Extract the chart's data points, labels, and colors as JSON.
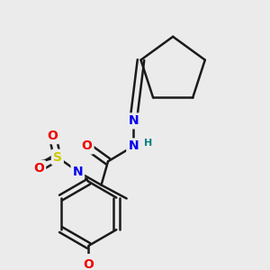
{
  "background_color": "#ebebeb",
  "bond_color": "#1a1a1a",
  "bond_width": 1.8,
  "atom_colors": {
    "N": "#0000ee",
    "O": "#ee0000",
    "S": "#cccc00",
    "H": "#008080"
  },
  "font_size_atom": 10,
  "font_size_H": 8,
  "figsize": [
    3.0,
    3.0
  ],
  "dpi": 100
}
